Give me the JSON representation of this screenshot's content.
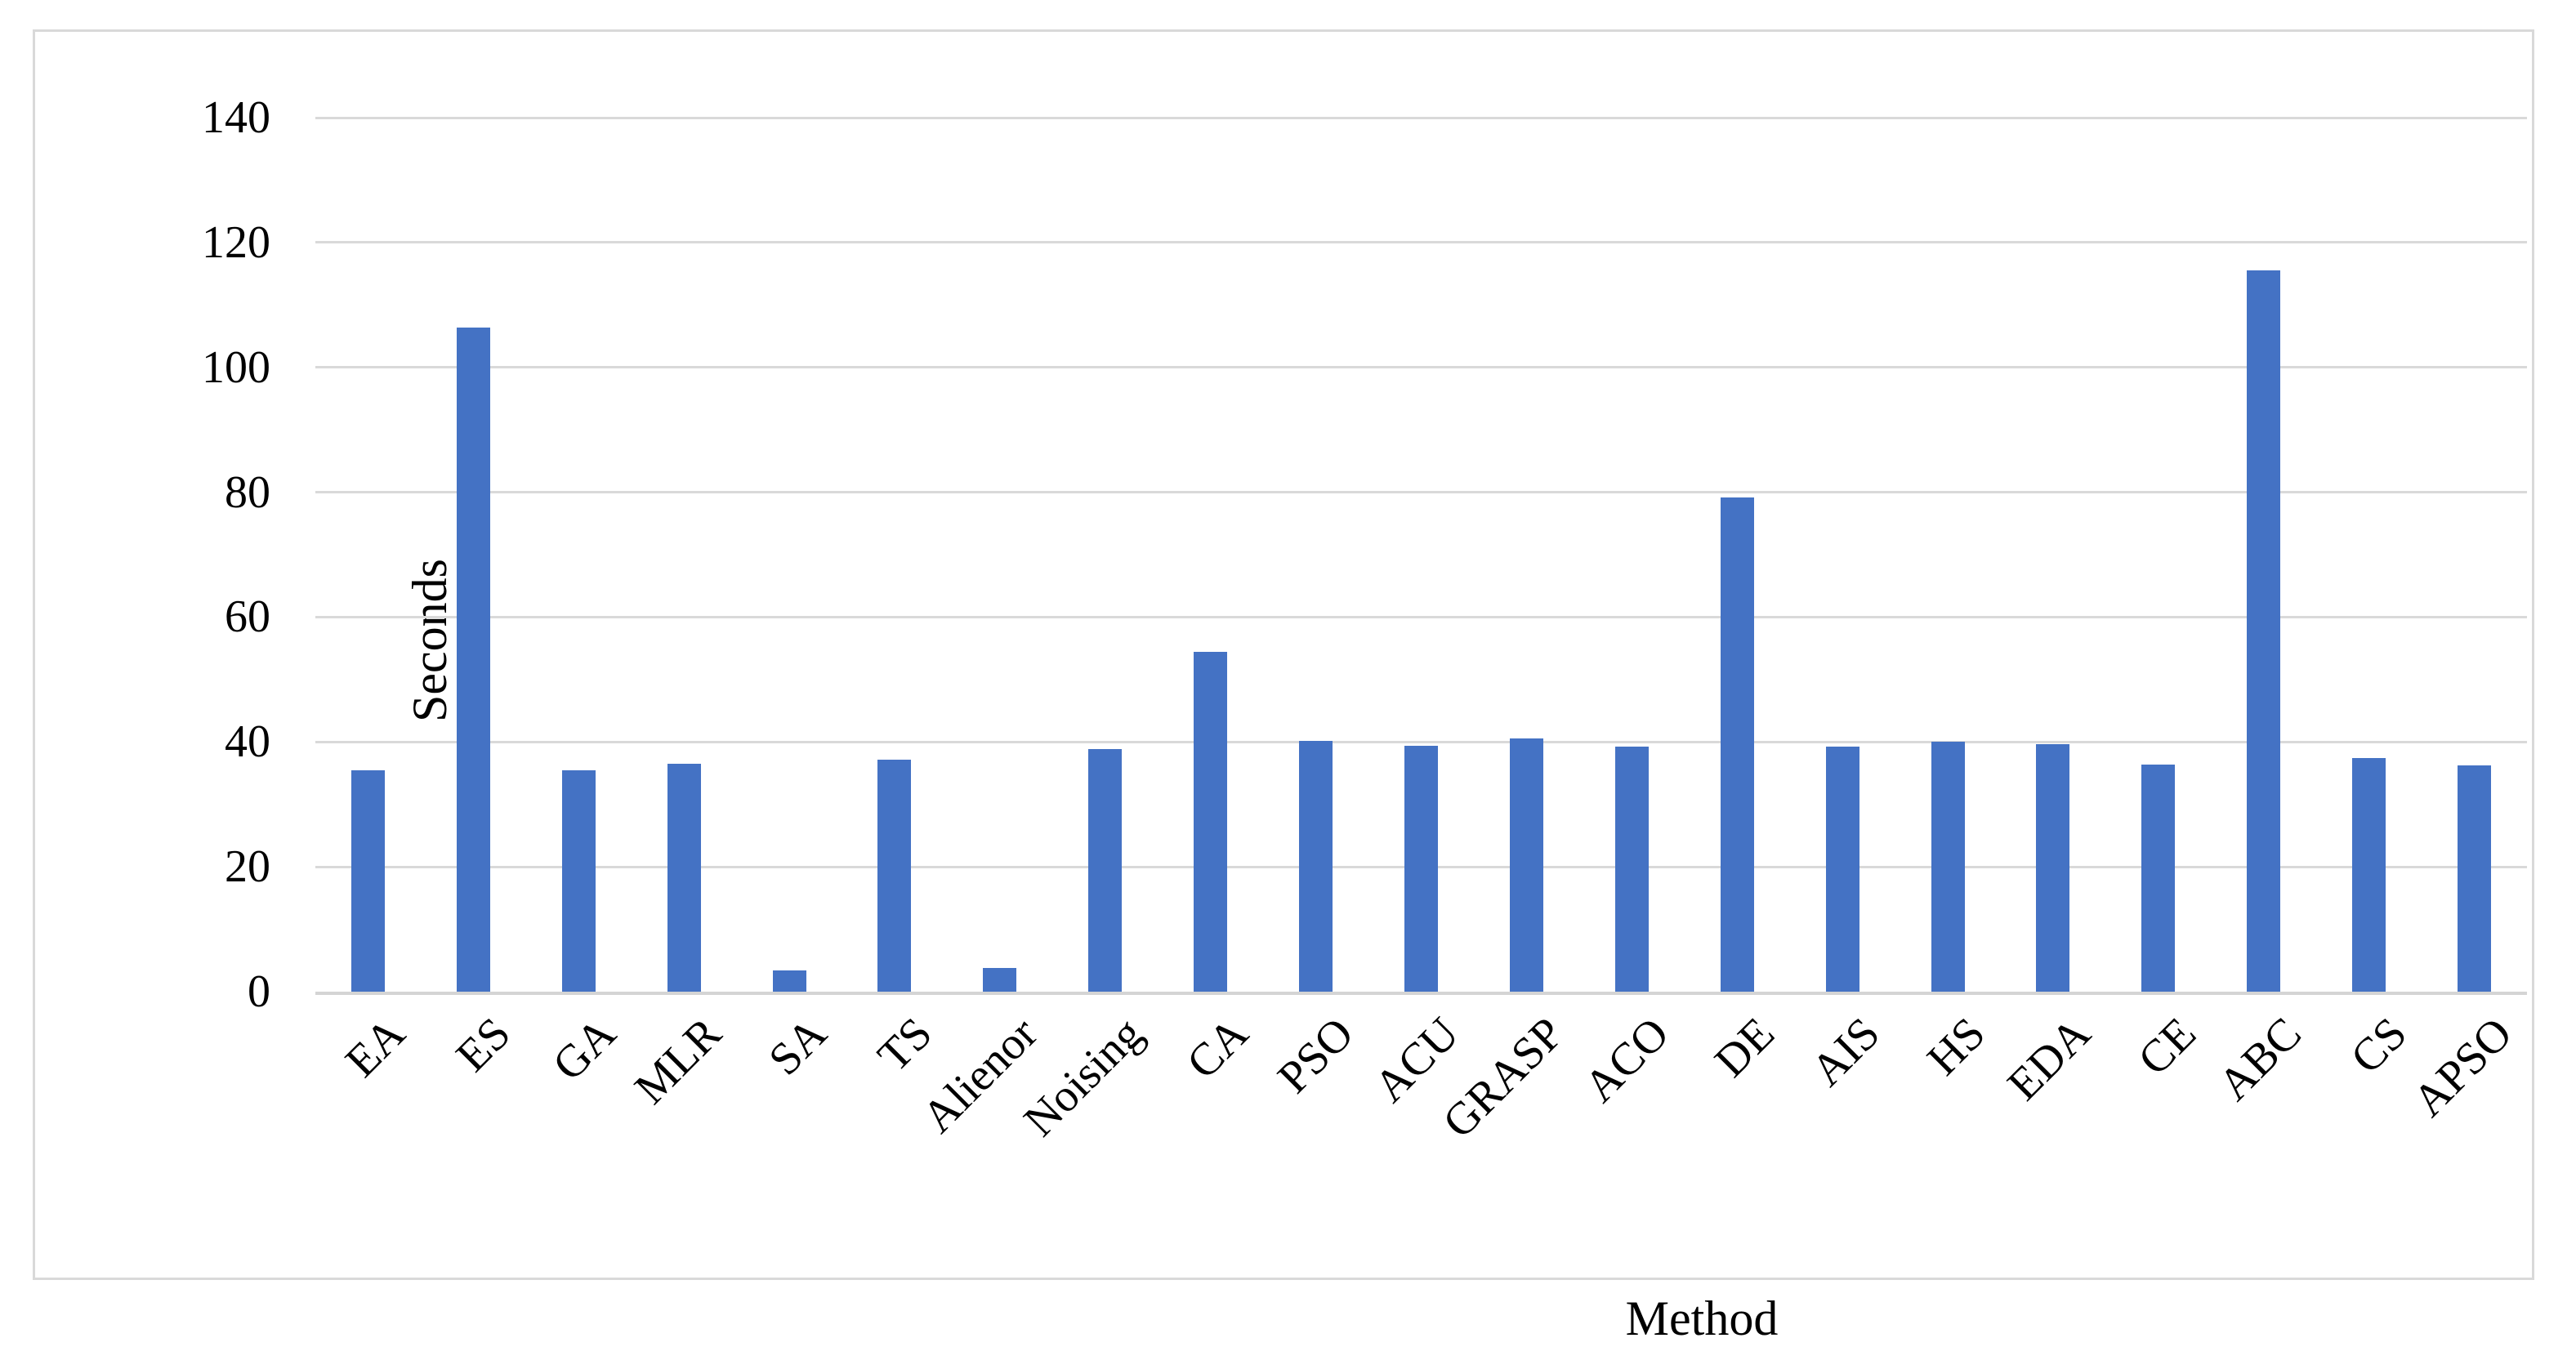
{
  "chart_data": {
    "type": "bar",
    "title": "",
    "xlabel": "Method",
    "ylabel": "Seconds",
    "categories": [
      "EA",
      "ES",
      "GA",
      "MLR",
      "SA",
      "TS",
      "Alienor",
      "Noising",
      "CA",
      "PSO",
      "ACU",
      "GRASP",
      "ACO",
      "DE",
      "AIS",
      "HS",
      "EDA",
      "CE",
      "ABC",
      "CS",
      "APSO"
    ],
    "values": [
      35.4,
      106.4,
      35.5,
      36.5,
      3.4,
      37.1,
      3.8,
      38.9,
      54.4,
      40.2,
      39.4,
      40.5,
      39.3,
      79.1,
      39.3,
      40.0,
      39.6,
      36.4,
      115.6,
      37.4,
      36.2
    ],
    "ylim": [
      0,
      140
    ],
    "yticks": [
      0,
      20,
      40,
      60,
      80,
      100,
      120,
      140
    ],
    "grid": true,
    "legend_position": "none",
    "bar_color": "#4472c4",
    "gridline_color": "#d9d9d9",
    "axis_line_color": "#d4d4d4",
    "frame_border_color": "#d9d9d9",
    "text_color": "#000000"
  }
}
